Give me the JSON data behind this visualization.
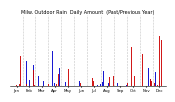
{
  "title": "Milw. Outdoor Rain  Daily Amount  (Past/Previous Year)",
  "n_days": 365,
  "background_color": "#ffffff",
  "current_color": "#cc0000",
  "previous_color": "#0000cc",
  "grid_color": "#aaaaaa",
  "title_fontsize": 3.5,
  "tick_fontsize": 2.8,
  "seed": 42,
  "ylim": [
    0,
    1.0
  ],
  "n_grid_lines": 12
}
